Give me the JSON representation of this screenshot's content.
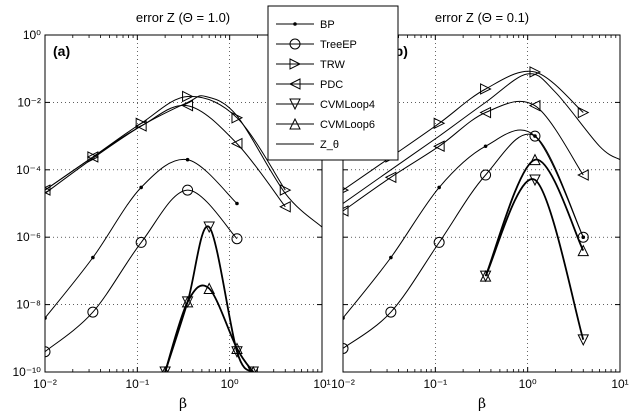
{
  "chart_data": [
    {
      "type": "line",
      "panel_label": "(a)",
      "title": "error Z (Θ = 1.0)",
      "xlabel": "β",
      "ylabel": "",
      "xscale": "log",
      "yscale": "log",
      "xlim": [
        0.01,
        10
      ],
      "ylim": [
        1e-10,
        1
      ],
      "x_tick_labels": [
        "10⁻²",
        "10⁻¹",
        "10⁰",
        "10¹"
      ],
      "y_tick_labels": [
        "10⁻¹⁰",
        "10⁻⁸",
        "10⁻⁶",
        "10⁻⁴",
        "10⁻²",
        "10⁰"
      ],
      "grid": true,
      "series": [
        {
          "name": "BP",
          "x": [
            0.01,
            0.033,
            0.11,
            0.35,
            1.2
          ],
          "y": [
            4e-09,
            2.5e-07,
            3e-05,
            0.0002,
            1e-05
          ]
        },
        {
          "name": "TreeEP",
          "x": [
            0.01,
            0.033,
            0.11,
            0.35,
            1.2
          ],
          "y": [
            4e-10,
            6e-09,
            7e-07,
            2.5e-05,
            9e-07
          ]
        },
        {
          "name": "TRW",
          "x": [
            0.01,
            0.033,
            0.11,
            0.35,
            1.2,
            4.0
          ],
          "y": [
            2.5e-05,
            0.00024,
            0.0024,
            0.015,
            0.0035,
            2.5e-05
          ]
        },
        {
          "name": "PDC",
          "x": [
            0.01,
            0.033,
            0.11,
            0.35,
            1.2,
            4.0
          ],
          "y": [
            2.5e-05,
            0.00024,
            0.002,
            0.008,
            0.0006,
            8e-06
          ]
        },
        {
          "name": "CVMLoop4",
          "x": [
            0.2,
            0.35,
            0.6,
            1.2,
            1.8
          ],
          "y": [
            1e-10,
            1.2e-08,
            2e-06,
            4e-10,
            1e-10
          ]
        },
        {
          "name": "CVMLoop6",
          "x": [
            0.2,
            0.35,
            0.6,
            1.2,
            1.8
          ],
          "y": [
            1e-10,
            1.2e-08,
            3e-08,
            5e-10,
            1e-10
          ]
        },
        {
          "name": "Z_θ",
          "x": [
            0.01,
            0.033,
            0.11,
            0.35,
            0.55,
            1.2,
            4.0,
            10
          ],
          "y": [
            2e-05,
            0.00022,
            0.002,
            0.01,
            0.015,
            0.004,
            2e-05,
            2e-06
          ]
        }
      ]
    },
    {
      "type": "line",
      "panel_label": "(b)",
      "title": "error Z (Θ = 0.1)",
      "xlabel": "β",
      "ylabel": "",
      "xscale": "log",
      "yscale": "log",
      "xlim": [
        0.01,
        10
      ],
      "ylim": [
        1e-10,
        1
      ],
      "x_tick_labels": [
        "10⁻²",
        "10⁻¹",
        "10⁰",
        "10¹"
      ],
      "grid": true,
      "series": [
        {
          "name": "BP",
          "x": [
            0.01,
            0.033,
            0.11,
            0.35,
            1.2,
            4.0
          ],
          "y": [
            4e-09,
            2.5e-07,
            3e-05,
            0.0005,
            0.001,
            1e-06
          ]
        },
        {
          "name": "TreeEP",
          "x": [
            0.01,
            0.033,
            0.11,
            0.35,
            1.2,
            4.0
          ],
          "y": [
            5e-10,
            6e-09,
            7e-07,
            7e-05,
            0.001,
            1e-06
          ]
        },
        {
          "name": "TRW",
          "x": [
            0.01,
            0.033,
            0.11,
            0.35,
            1.2,
            4.0
          ],
          "y": [
            2.5e-05,
            0.00024,
            0.0024,
            0.025,
            0.08,
            0.005
          ]
        },
        {
          "name": "PDC",
          "x": [
            0.01,
            0.033,
            0.11,
            0.35,
            1.2,
            4.0
          ],
          "y": [
            6e-06,
            6e-05,
            0.0005,
            0.005,
            0.008,
            7e-05
          ]
        },
        {
          "name": "CVMLoop4",
          "x": [
            0.35,
            1.2,
            4.0
          ],
          "y": [
            7e-08,
            5e-05,
            9e-10
          ]
        },
        {
          "name": "CVMLoop6",
          "x": [
            0.35,
            1.2,
            4.0
          ],
          "y": [
            7e-08,
            0.0002,
            4e-07
          ]
        },
        {
          "name": "Z_θ",
          "x": [
            0.01,
            0.033,
            0.11,
            0.35,
            1.0,
            2.0,
            6.0,
            10
          ],
          "y": [
            1e-05,
            0.0001,
            0.001,
            0.01,
            0.07,
            0.02,
            0.0005,
            0.0002
          ]
        }
      ]
    }
  ],
  "legend": {
    "placement": "top-center",
    "entries": [
      {
        "label": "BP",
        "marker": "dot"
      },
      {
        "label": "TreeEP",
        "marker": "circle"
      },
      {
        "label": "TRW",
        "marker": "triangle-right"
      },
      {
        "label": "PDC",
        "marker": "triangle-left"
      },
      {
        "label": "CVMLoop4",
        "marker": "triangle-down"
      },
      {
        "label": "CVMLoop6",
        "marker": "triangle-up"
      },
      {
        "label": "Z_θ",
        "marker": "none"
      }
    ]
  }
}
